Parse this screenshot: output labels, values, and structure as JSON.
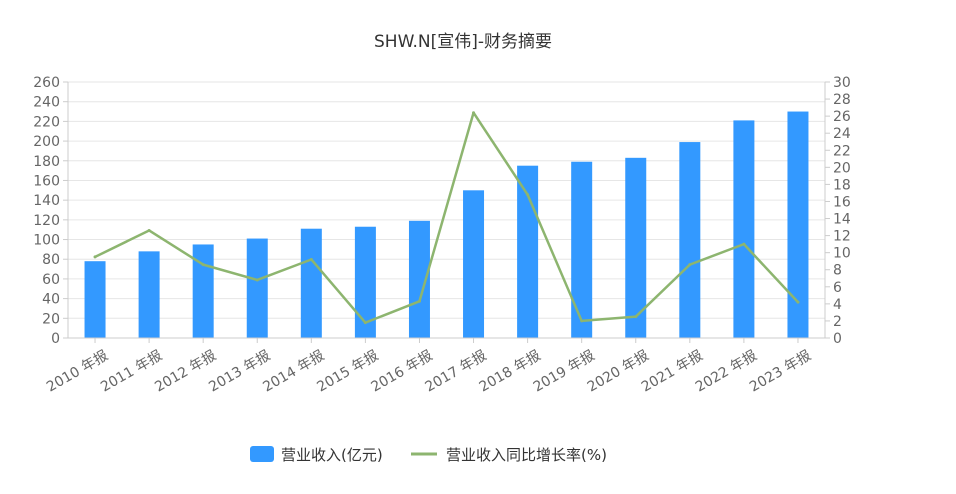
{
  "chart_data": {
    "type": "bar",
    "title": "SHW.N[宣伟]-财务摘要",
    "categories": [
      "2010 年报",
      "2011 年报",
      "2012 年报",
      "2013 年报",
      "2014 年报",
      "2015 年报",
      "2016 年报",
      "2017 年报",
      "2018 年报",
      "2019 年报",
      "2020 年报",
      "2021 年报",
      "2022 年报",
      "2023 年报"
    ],
    "series": [
      {
        "name": "营业收入(亿元)",
        "type": "bar",
        "axis": "left",
        "color": "#3399ff",
        "values": [
          78,
          88,
          95,
          101,
          111,
          113,
          119,
          150,
          175,
          179,
          183,
          199,
          221,
          230
        ]
      },
      {
        "name": "营业收入同比增长率(%)",
        "type": "line",
        "axis": "right",
        "color": "#8db56f",
        "values": [
          9.5,
          12.6,
          8.6,
          6.8,
          9.2,
          1.8,
          4.3,
          26.4,
          16.8,
          2.0,
          2.5,
          8.6,
          11.0,
          4.2
        ]
      }
    ],
    "y_left": {
      "min": 0,
      "max": 260,
      "step": 20
    },
    "y_right": {
      "min": 0,
      "max": 30,
      "step": 2
    },
    "grid": true,
    "legend_position": "bottom-center"
  }
}
